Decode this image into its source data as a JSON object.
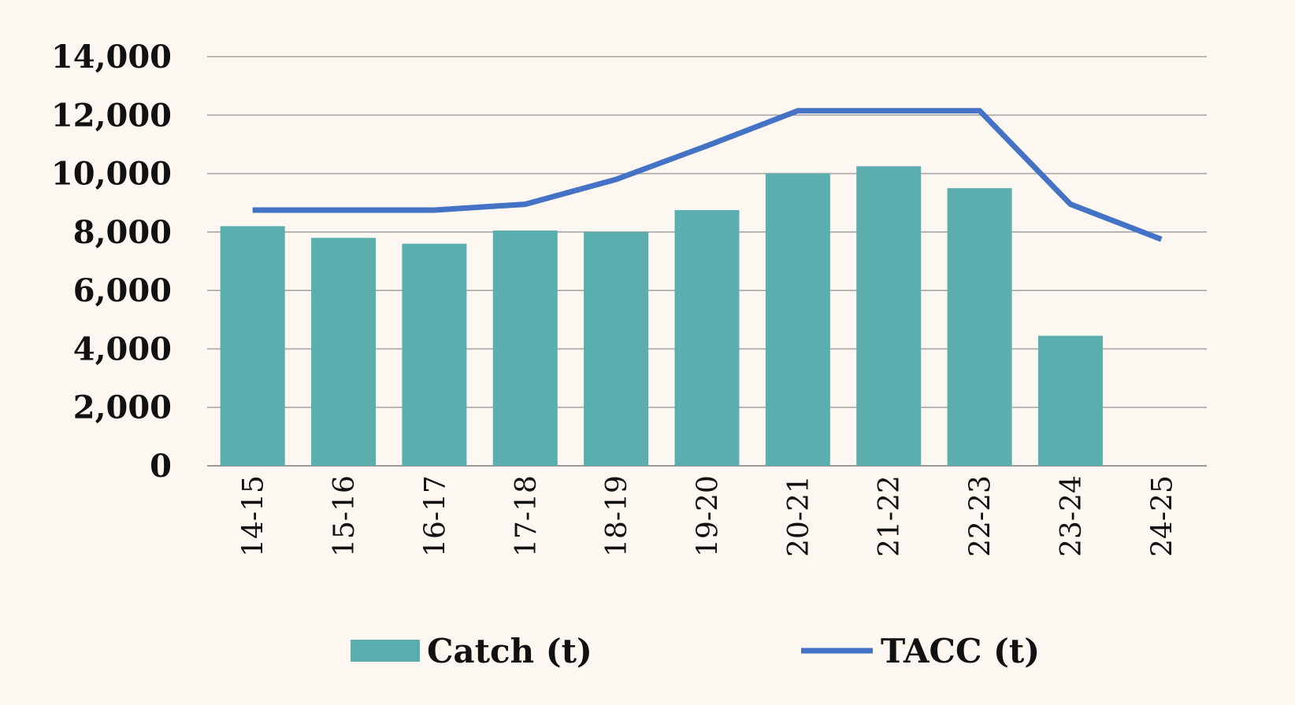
{
  "chart_data": {
    "type": "bar",
    "title": "",
    "xlabel": "",
    "ylabel": "",
    "categories": [
      "14-15",
      "15-16",
      "16-17",
      "17-18",
      "18-19",
      "19-20",
      "20-21",
      "21-22",
      "22-23",
      "23-24",
      "24-25"
    ],
    "ylim": [
      0,
      14000
    ],
    "yticks": [
      0,
      2000,
      4000,
      6000,
      8000,
      10000,
      12000,
      14000
    ],
    "ytick_labels": [
      "0",
      "2,000",
      "4,000",
      "6,000",
      "8,000",
      "10,000",
      "12,000",
      "14,000"
    ],
    "grid": true,
    "legend_position": "bottom",
    "series": [
      {
        "name": "Catch (t)",
        "type": "bar",
        "color": "#5aafae",
        "values": [
          8200,
          7800,
          7600,
          8050,
          8000,
          8750,
          10000,
          10250,
          9500,
          4450,
          null
        ]
      },
      {
        "name": "TACC (t)",
        "type": "line",
        "color": "#4472c4",
        "values": [
          8750,
          8750,
          8750,
          8950,
          9800,
          10950,
          12150,
          12150,
          12150,
          8950,
          7750
        ]
      }
    ]
  }
}
